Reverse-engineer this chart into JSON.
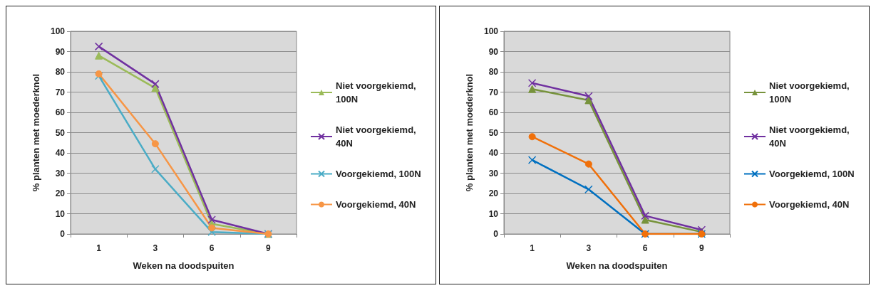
{
  "chart_data": [
    {
      "type": "line",
      "xlabel": "Weken na doodspuiten",
      "ylabel": "% planten met moederknol",
      "categories": [
        "1",
        "3",
        "6",
        "9"
      ],
      "ylim": [
        0,
        100
      ],
      "yticks": [
        0,
        10,
        20,
        30,
        40,
        50,
        60,
        70,
        80,
        90,
        100
      ],
      "grid": "y",
      "legend": "right",
      "series": [
        {
          "name": "Niet voorgekiemd, 100N",
          "color": "#9bbb59",
          "marker": "triangle",
          "values": [
            88,
            72,
            5,
            0
          ]
        },
        {
          "name": "Niet voorgekiemd, 40N",
          "color": "#7030a0",
          "marker": "cross",
          "values": [
            92.5,
            74,
            7,
            0
          ]
        },
        {
          "name": "Voorgekiemd, 100N",
          "color": "#4bacc6",
          "marker": "cross",
          "values": [
            78,
            32,
            1,
            0
          ]
        },
        {
          "name": "Voorgekiemd, 40N",
          "color": "#f79646",
          "marker": "circle",
          "values": [
            79,
            44.5,
            3,
            0
          ]
        }
      ]
    },
    {
      "type": "line",
      "xlabel": "Weken na doodspuiten",
      "ylabel": "% planten met moederknol",
      "categories": [
        "1",
        "3",
        "6",
        "9"
      ],
      "ylim": [
        0,
        100
      ],
      "yticks": [
        0,
        10,
        20,
        30,
        40,
        50,
        60,
        70,
        80,
        90,
        100
      ],
      "grid": "y",
      "legend": "right",
      "series": [
        {
          "name": "Niet voorgekiemd, 100N",
          "color": "#77933c",
          "marker": "triangle",
          "values": [
            71.5,
            66,
            7,
            1
          ]
        },
        {
          "name": "Niet voorgekiemd, 40N",
          "color": "#7030a0",
          "marker": "cross",
          "values": [
            74.5,
            68,
            9,
            2
          ]
        },
        {
          "name": "Voorgekiemd, 100N",
          "color": "#0070c0",
          "marker": "cross",
          "values": [
            36.5,
            22,
            0,
            0
          ]
        },
        {
          "name": "Voorgekiemd, 40N",
          "color": "#f0700a",
          "marker": "circle",
          "values": [
            48,
            34.5,
            0,
            0
          ]
        }
      ]
    }
  ]
}
